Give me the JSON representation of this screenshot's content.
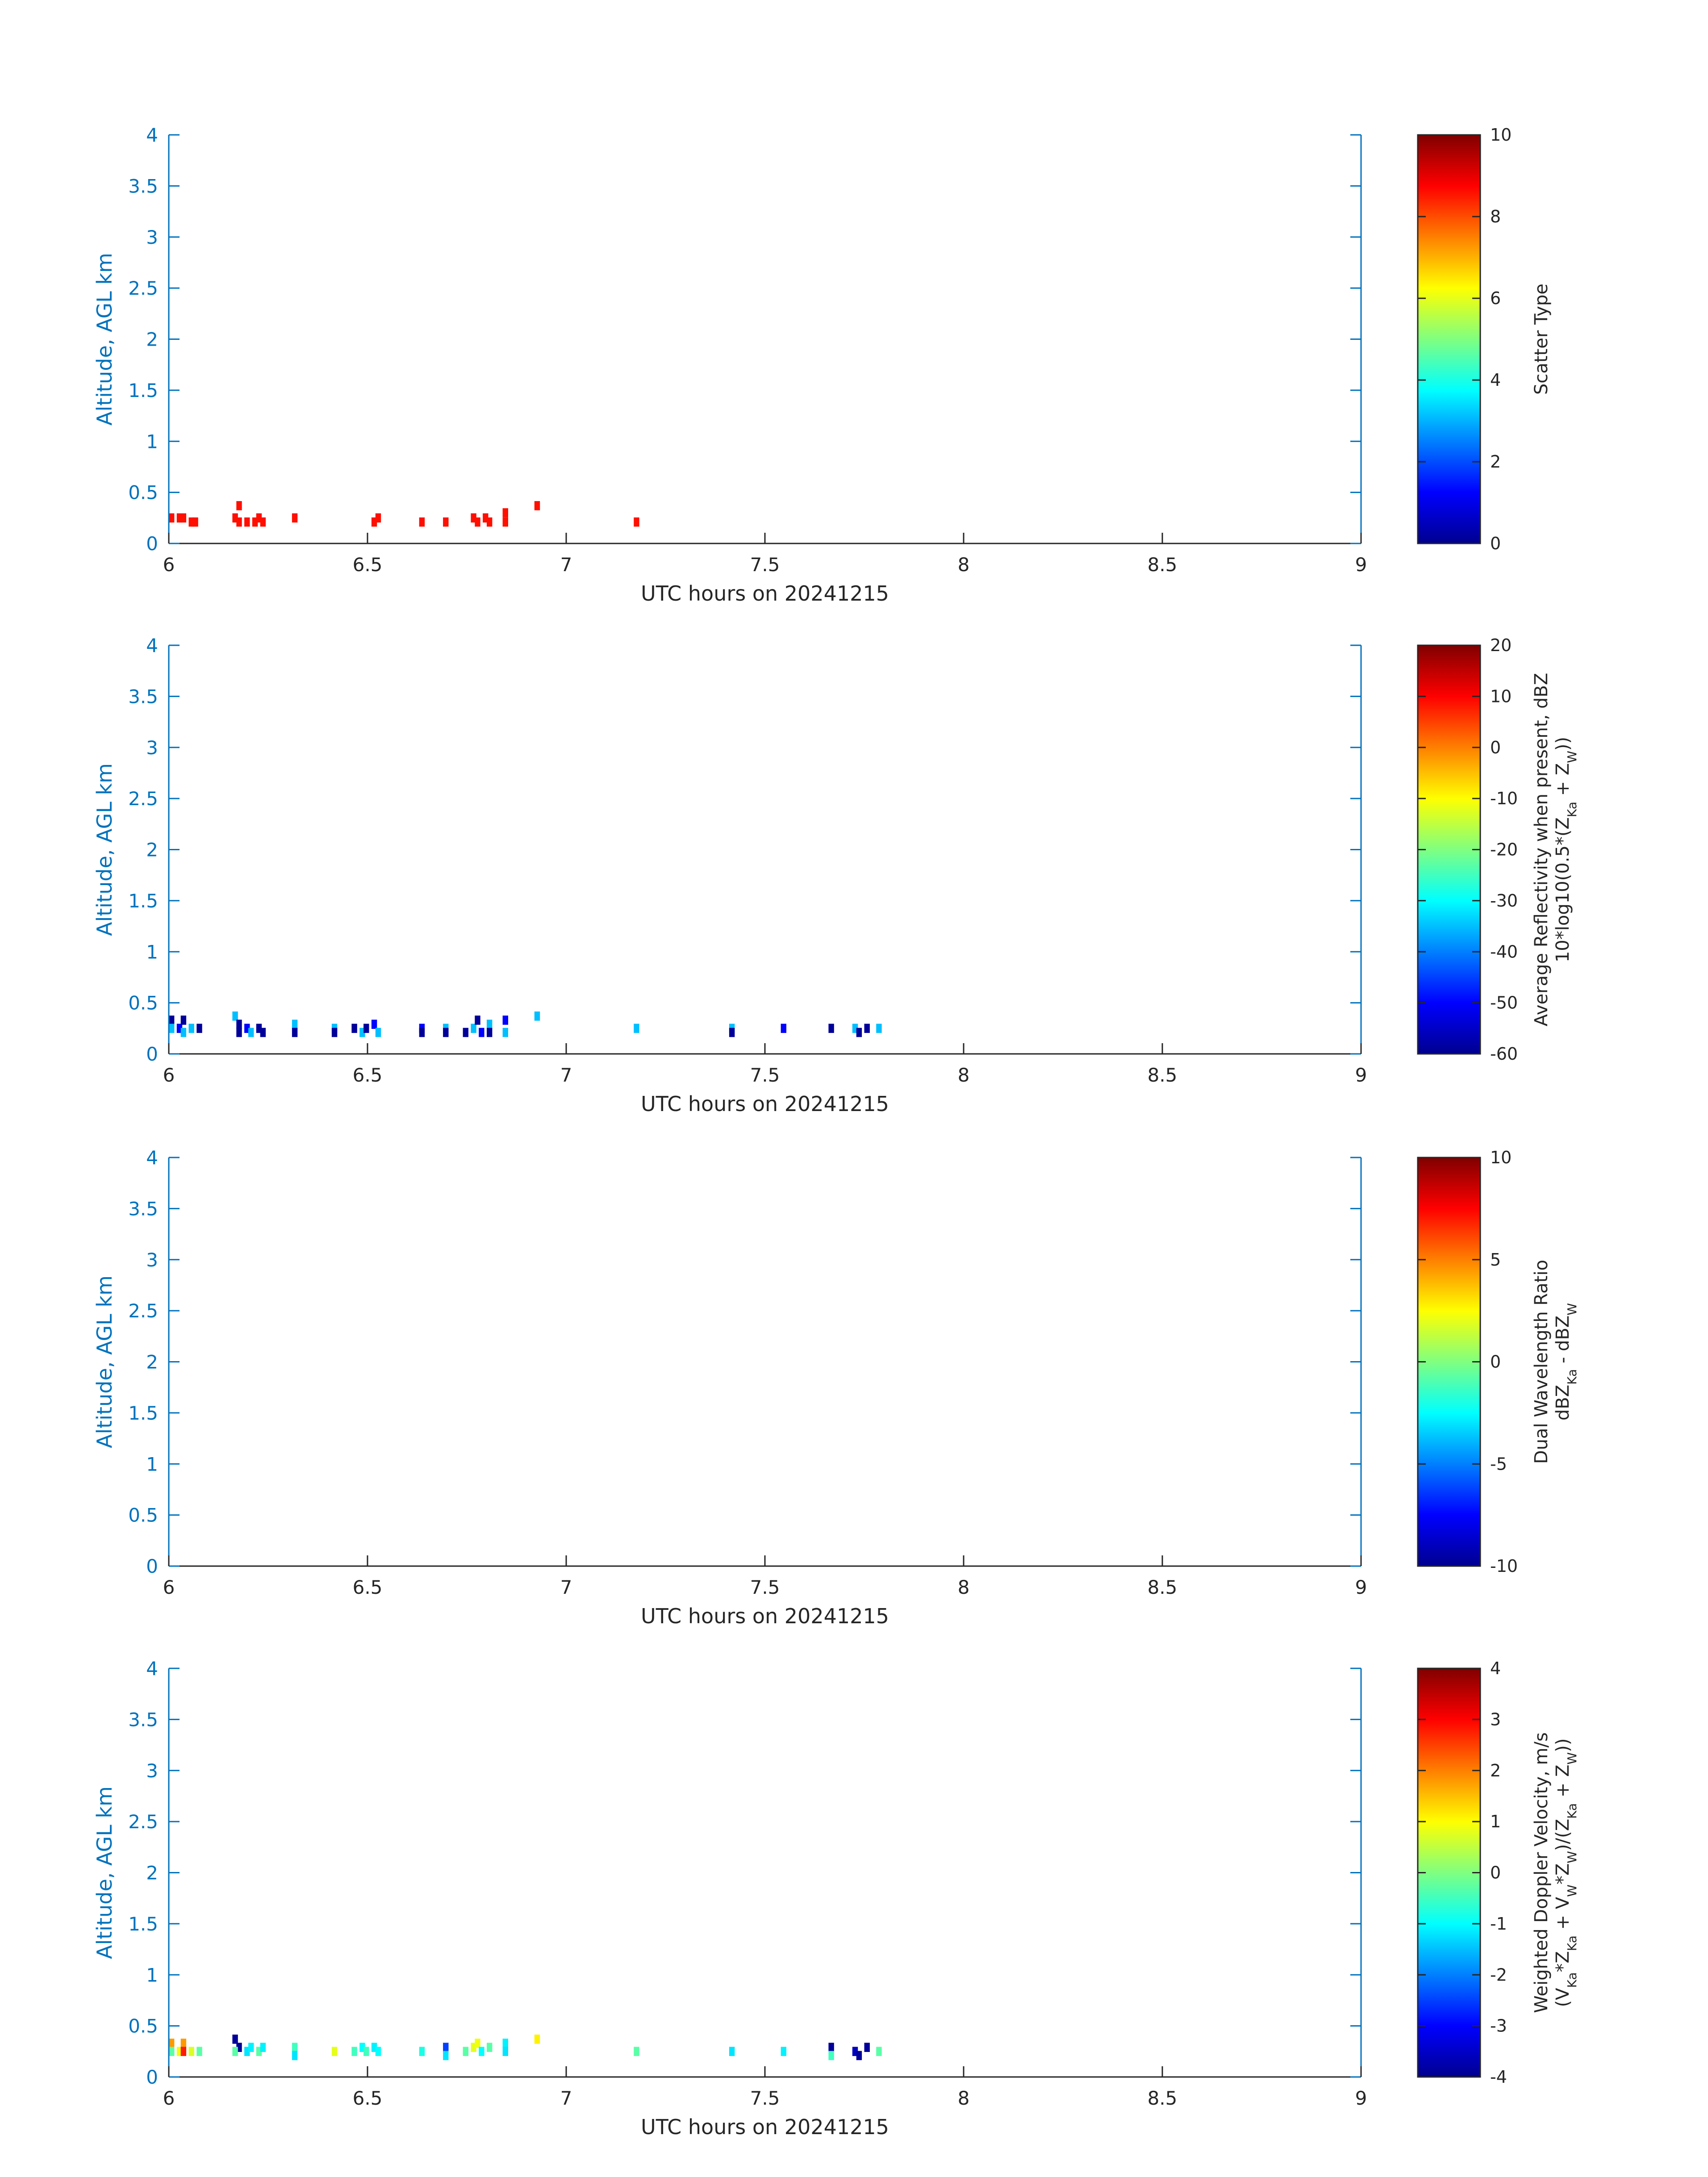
{
  "chart_data": [
    {
      "type": "heatmap",
      "xlabel": "UTC hours on 20241215",
      "ylabel": "Altitude, AGL km",
      "xlim": [
        6,
        9
      ],
      "ylim": [
        0,
        4
      ],
      "xticks": [
        "6",
        "6.5",
        "7",
        "7.5",
        "8",
        "8.5",
        "9"
      ],
      "yticks": [
        "0",
        "0.5",
        "1",
        "1.5",
        "2",
        "2.5",
        "3",
        "3.5",
        "4"
      ],
      "colorbar": {
        "label_lines": [
          "Scatter Type"
        ],
        "range": [
          0,
          10
        ],
        "ticks": [
          "0",
          "2",
          "4",
          "6",
          "8",
          "10"
        ],
        "colormap": "jet"
      },
      "cell": {
        "dt": 0.0139,
        "dz": 0.09
      },
      "points": [
        {
          "t": 6.0,
          "z": 0.25,
          "v": 8.6
        },
        {
          "t": 6.02,
          "z": 0.25,
          "v": 8.6
        },
        {
          "t": 6.03,
          "z": 0.25,
          "v": 8.6
        },
        {
          "t": 6.05,
          "z": 0.21,
          "v": 8.6
        },
        {
          "t": 6.06,
          "z": 0.21,
          "v": 8.6
        },
        {
          "t": 6.16,
          "z": 0.25,
          "v": 8.6
        },
        {
          "t": 6.17,
          "z": 0.37,
          "v": 8.6
        },
        {
          "t": 6.17,
          "z": 0.21,
          "v": 8.6
        },
        {
          "t": 6.19,
          "z": 0.21,
          "v": 8.6
        },
        {
          "t": 6.21,
          "z": 0.21,
          "v": 8.6
        },
        {
          "t": 6.22,
          "z": 0.25,
          "v": 8.6
        },
        {
          "t": 6.23,
          "z": 0.21,
          "v": 8.6
        },
        {
          "t": 6.31,
          "z": 0.25,
          "v": 8.6
        },
        {
          "t": 6.51,
          "z": 0.21,
          "v": 8.6
        },
        {
          "t": 6.52,
          "z": 0.25,
          "v": 8.6
        },
        {
          "t": 6.63,
          "z": 0.21,
          "v": 8.6
        },
        {
          "t": 6.69,
          "z": 0.21,
          "v": 8.6
        },
        {
          "t": 6.76,
          "z": 0.25,
          "v": 8.6
        },
        {
          "t": 6.77,
          "z": 0.21,
          "v": 8.6
        },
        {
          "t": 6.79,
          "z": 0.25,
          "v": 8.6
        },
        {
          "t": 6.8,
          "z": 0.21,
          "v": 8.6
        },
        {
          "t": 6.84,
          "z": 0.3,
          "v": 8.6
        },
        {
          "t": 6.84,
          "z": 0.21,
          "v": 8.6
        },
        {
          "t": 6.92,
          "z": 0.37,
          "v": 8.6
        },
        {
          "t": 7.17,
          "z": 0.21,
          "v": 8.6
        }
      ]
    },
    {
      "type": "heatmap",
      "xlabel": "UTC hours on 20241215",
      "ylabel": "Altitude, AGL km",
      "xlim": [
        6,
        9
      ],
      "ylim": [
        0,
        4
      ],
      "xticks": [
        "6",
        "6.5",
        "7",
        "7.5",
        "8",
        "8.5",
        "9"
      ],
      "yticks": [
        "0",
        "0.5",
        "1",
        "1.5",
        "2",
        "2.5",
        "3",
        "3.5",
        "4"
      ],
      "colorbar": {
        "label_lines": [
          "Average Reflectivity when present, dBZ",
          "10*log10(0.5*(Z",
          "Ka",
          " + Z",
          "W",
          "))"
        ],
        "range": [
          -60,
          20
        ],
        "ticks": [
          "-60",
          "-50",
          "-40",
          "-30",
          "-20",
          "-10",
          "0",
          "10",
          "20"
        ],
        "colormap": "jet"
      },
      "cell": {
        "dt": 0.0139,
        "dz": 0.09
      },
      "points": [
        {
          "t": 6.0,
          "z": 0.33,
          "v": -58
        },
        {
          "t": 6.0,
          "z": 0.25,
          "v": -35
        },
        {
          "t": 6.02,
          "z": 0.25,
          "v": -50
        },
        {
          "t": 6.03,
          "z": 0.33,
          "v": -58
        },
        {
          "t": 6.03,
          "z": 0.21,
          "v": -35
        },
        {
          "t": 6.05,
          "z": 0.25,
          "v": -35
        },
        {
          "t": 6.07,
          "z": 0.25,
          "v": -58
        },
        {
          "t": 6.16,
          "z": 0.37,
          "v": -35
        },
        {
          "t": 6.17,
          "z": 0.29,
          "v": -58
        },
        {
          "t": 6.17,
          "z": 0.21,
          "v": -58
        },
        {
          "t": 6.19,
          "z": 0.25,
          "v": -50
        },
        {
          "t": 6.2,
          "z": 0.21,
          "v": -35
        },
        {
          "t": 6.22,
          "z": 0.25,
          "v": -58
        },
        {
          "t": 6.23,
          "z": 0.21,
          "v": -58
        },
        {
          "t": 6.31,
          "z": 0.29,
          "v": -35
        },
        {
          "t": 6.31,
          "z": 0.21,
          "v": -58
        },
        {
          "t": 6.41,
          "z": 0.25,
          "v": -35
        },
        {
          "t": 6.41,
          "z": 0.21,
          "v": -58
        },
        {
          "t": 6.46,
          "z": 0.25,
          "v": -58
        },
        {
          "t": 6.48,
          "z": 0.21,
          "v": -35
        },
        {
          "t": 6.49,
          "z": 0.25,
          "v": -58
        },
        {
          "t": 6.51,
          "z": 0.29,
          "v": -50
        },
        {
          "t": 6.52,
          "z": 0.21,
          "v": -35
        },
        {
          "t": 6.63,
          "z": 0.25,
          "v": -50
        },
        {
          "t": 6.63,
          "z": 0.21,
          "v": -58
        },
        {
          "t": 6.69,
          "z": 0.25,
          "v": -35
        },
        {
          "t": 6.69,
          "z": 0.21,
          "v": -58
        },
        {
          "t": 6.74,
          "z": 0.21,
          "v": -58
        },
        {
          "t": 6.76,
          "z": 0.25,
          "v": -35
        },
        {
          "t": 6.77,
          "z": 0.33,
          "v": -58
        },
        {
          "t": 6.78,
          "z": 0.21,
          "v": -50
        },
        {
          "t": 6.8,
          "z": 0.29,
          "v": -35
        },
        {
          "t": 6.8,
          "z": 0.21,
          "v": -58
        },
        {
          "t": 6.84,
          "z": 0.33,
          "v": -50
        },
        {
          "t": 6.84,
          "z": 0.21,
          "v": -35
        },
        {
          "t": 6.92,
          "z": 0.37,
          "v": -35
        },
        {
          "t": 7.17,
          "z": 0.25,
          "v": -35
        },
        {
          "t": 7.41,
          "z": 0.25,
          "v": -35
        },
        {
          "t": 7.41,
          "z": 0.21,
          "v": -58
        },
        {
          "t": 7.54,
          "z": 0.25,
          "v": -50
        },
        {
          "t": 7.66,
          "z": 0.25,
          "v": -58
        },
        {
          "t": 7.72,
          "z": 0.25,
          "v": -35
        },
        {
          "t": 7.73,
          "z": 0.21,
          "v": -58
        },
        {
          "t": 7.75,
          "z": 0.25,
          "v": -58
        },
        {
          "t": 7.78,
          "z": 0.25,
          "v": -35
        }
      ]
    },
    {
      "type": "heatmap",
      "xlabel": "UTC hours on 20241215",
      "ylabel": "Altitude, AGL km",
      "xlim": [
        6,
        9
      ],
      "ylim": [
        0,
        4
      ],
      "xticks": [
        "6",
        "6.5",
        "7",
        "7.5",
        "8",
        "8.5",
        "9"
      ],
      "yticks": [
        "0",
        "0.5",
        "1",
        "1.5",
        "2",
        "2.5",
        "3",
        "3.5",
        "4"
      ],
      "colorbar": {
        "label_lines": [
          "Dual Wavelength Ratio",
          "dBZ",
          "Ka",
          " - dBZ",
          "W",
          ""
        ],
        "range": [
          -10,
          10
        ],
        "ticks": [
          "-10",
          "-5",
          "0",
          "5",
          "10"
        ],
        "colormap": "jet"
      },
      "cell": {
        "dt": 0.0139,
        "dz": 0.09
      },
      "points": []
    },
    {
      "type": "heatmap",
      "xlabel": "UTC hours on 20241215",
      "ylabel": "Altitude, AGL km",
      "xlim": [
        6,
        9
      ],
      "ylim": [
        0,
        4
      ],
      "xticks": [
        "6",
        "6.5",
        "7",
        "7.5",
        "8",
        "8.5",
        "9"
      ],
      "yticks": [
        "0",
        "0.5",
        "1",
        "1.5",
        "2",
        "2.5",
        "3",
        "3.5",
        "4"
      ],
      "colorbar": {
        "label_lines": [
          "Weighted Doppler Velocity, m/s",
          "(V",
          "Ka",
          "*Z",
          "Ka",
          " + V",
          "W",
          "*Z",
          "W",
          ")/(Z",
          "Ka",
          " + Z",
          "W",
          "))"
        ],
        "range": [
          -4,
          4
        ],
        "ticks": [
          "-4",
          "-3",
          "-2",
          "-1",
          "0",
          "1",
          "2",
          "3",
          "4"
        ],
        "colormap": "jet"
      },
      "cell": {
        "dt": 0.0139,
        "dz": 0.09
      },
      "points": [
        {
          "t": 6.0,
          "z": 0.33,
          "v": 1.8
        },
        {
          "t": 6.0,
          "z": 0.25,
          "v": -0.3
        },
        {
          "t": 6.02,
          "z": 0.25,
          "v": 0.9
        },
        {
          "t": 6.03,
          "z": 0.33,
          "v": 1.8
        },
        {
          "t": 6.03,
          "z": 0.25,
          "v": 2.8
        },
        {
          "t": 6.05,
          "z": 0.25,
          "v": 0.7
        },
        {
          "t": 6.07,
          "z": 0.25,
          "v": -0.3
        },
        {
          "t": 6.16,
          "z": 0.37,
          "v": -3.8
        },
        {
          "t": 6.17,
          "z": 0.29,
          "v": -3.8
        },
        {
          "t": 6.16,
          "z": 0.25,
          "v": -0.3
        },
        {
          "t": 6.19,
          "z": 0.25,
          "v": -1.2
        },
        {
          "t": 6.2,
          "z": 0.29,
          "v": -1.1
        },
        {
          "t": 6.22,
          "z": 0.25,
          "v": -0.3
        },
        {
          "t": 6.23,
          "z": 0.29,
          "v": -1.1
        },
        {
          "t": 6.31,
          "z": 0.29,
          "v": -0.5
        },
        {
          "t": 6.31,
          "z": 0.21,
          "v": -1.2
        },
        {
          "t": 6.41,
          "z": 0.25,
          "v": 0.8
        },
        {
          "t": 6.46,
          "z": 0.25,
          "v": -0.5
        },
        {
          "t": 6.48,
          "z": 0.29,
          "v": -1.0
        },
        {
          "t": 6.49,
          "z": 0.25,
          "v": -0.5
        },
        {
          "t": 6.51,
          "z": 0.29,
          "v": -1.1
        },
        {
          "t": 6.52,
          "z": 0.25,
          "v": -1.0
        },
        {
          "t": 6.63,
          "z": 0.25,
          "v": -0.8
        },
        {
          "t": 6.69,
          "z": 0.29,
          "v": -2.5
        },
        {
          "t": 6.69,
          "z": 0.21,
          "v": -1.2
        },
        {
          "t": 6.74,
          "z": 0.25,
          "v": -0.3
        },
        {
          "t": 6.76,
          "z": 0.29,
          "v": 0.8
        },
        {
          "t": 6.77,
          "z": 0.33,
          "v": 0.9
        },
        {
          "t": 6.78,
          "z": 0.25,
          "v": -1.0
        },
        {
          "t": 6.8,
          "z": 0.29,
          "v": -0.3
        },
        {
          "t": 6.84,
          "z": 0.33,
          "v": -1.1
        },
        {
          "t": 6.84,
          "z": 0.25,
          "v": -1.2
        },
        {
          "t": 6.92,
          "z": 0.37,
          "v": 1.1
        },
        {
          "t": 7.17,
          "z": 0.25,
          "v": -0.3
        },
        {
          "t": 7.41,
          "z": 0.25,
          "v": -1.2
        },
        {
          "t": 7.54,
          "z": 0.25,
          "v": -1.1
        },
        {
          "t": 7.66,
          "z": 0.29,
          "v": -3.8
        },
        {
          "t": 7.66,
          "z": 0.21,
          "v": -0.5
        },
        {
          "t": 7.72,
          "z": 0.25,
          "v": -3.5
        },
        {
          "t": 7.73,
          "z": 0.21,
          "v": -3.8
        },
        {
          "t": 7.75,
          "z": 0.29,
          "v": -3.8
        },
        {
          "t": 7.78,
          "z": 0.25,
          "v": -0.3
        }
      ]
    }
  ]
}
